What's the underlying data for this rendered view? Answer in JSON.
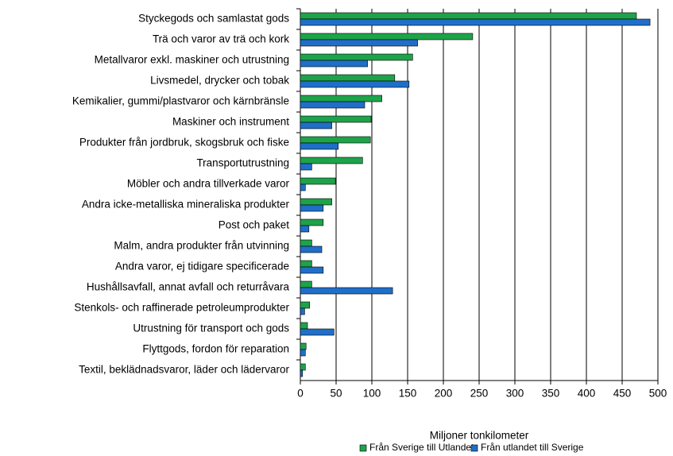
{
  "chart_data": {
    "type": "barh",
    "x_label": "Miljoner tonkilometer",
    "categories": [
      "Styckegods och samlastat gods",
      "Trä och varor av trä och kork",
      "Metallvaror exkl. maskiner och utrustning",
      "Livsmedel, drycker och tobak",
      "Kemikalier, gummi/plastvaror och kärnbränsle",
      "Maskiner och instrument",
      "Produkter från jordbruk, skogsbruk och fiske",
      "Transportutrustning",
      "Möbler och andra tillverkade varor",
      "Andra icke-metalliska mineraliska produkter",
      "Post och paket",
      "Malm, andra produkter från utvinning",
      "Andra varor, ej tidigare specificerade",
      "Hushållsavfall, annat avfall och returråvara",
      "Stenkols- och raffinerade petroleumprodukter",
      "Utrustning för transport och gods",
      "Flyttgods, fordon för reparation",
      "Textil, beklädnadsvaror, läder och lädervaror"
    ],
    "series": [
      {
        "name": "Från Sverige till Utlandet",
        "color": "#1ea34a",
        "values": [
          470,
          241,
          157,
          132,
          114,
          99,
          98,
          87,
          49,
          44,
          32,
          16,
          16,
          16,
          13,
          10,
          8,
          7
        ]
      },
      {
        "name": "Från utlandet till Sverige",
        "color": "#1f6fc8",
        "values": [
          489,
          164,
          94,
          152,
          90,
          44,
          53,
          16,
          7,
          32,
          12,
          30,
          32,
          129,
          6,
          47,
          7,
          3
        ]
      }
    ],
    "xlim": [
      0,
      500
    ],
    "xticks": [
      0,
      50,
      100,
      150,
      200,
      250,
      300,
      350,
      400,
      450,
      500
    ],
    "grid": true,
    "legend": "bottom"
  }
}
